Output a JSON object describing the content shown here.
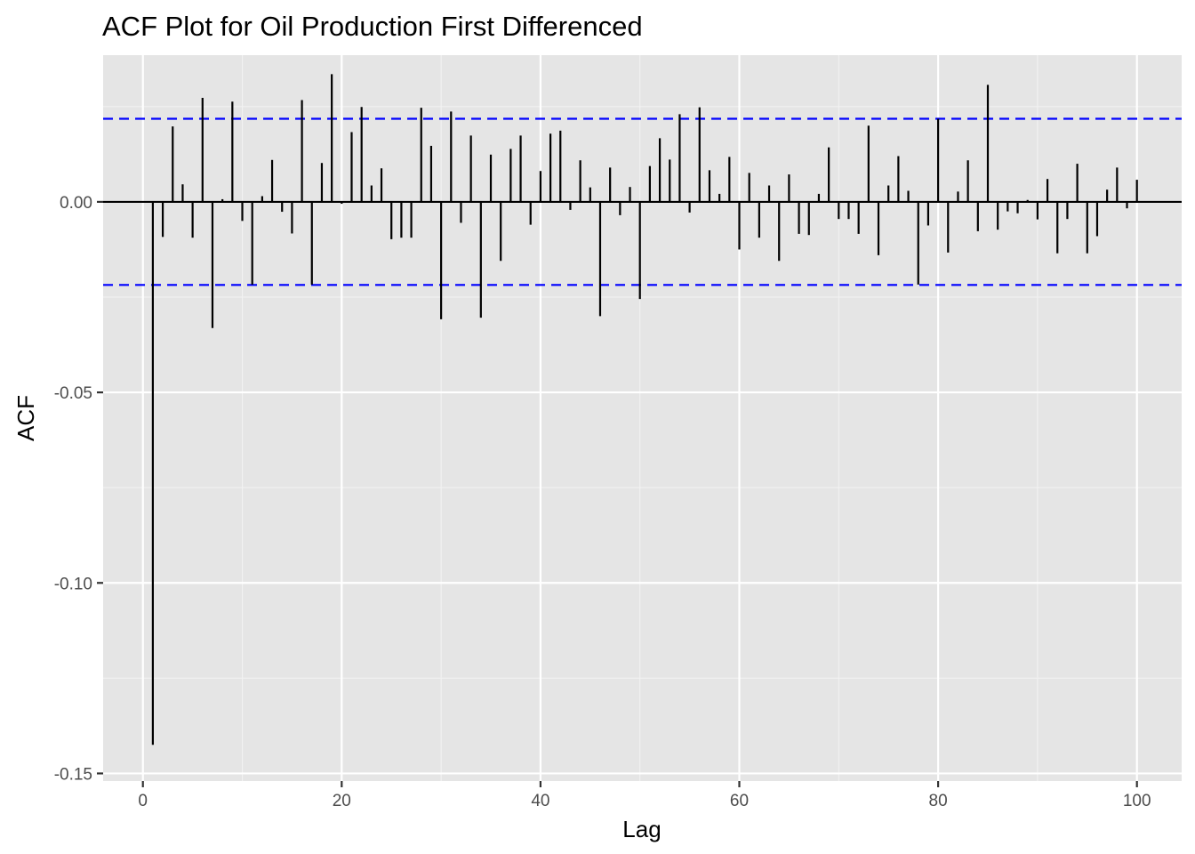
{
  "chart_data": {
    "type": "bar",
    "title": "ACF Plot for Oil Production First Differenced",
    "xlabel": "Lag",
    "ylabel": "ACF",
    "xlim": [
      -4,
      104.5
    ],
    "ylim": [
      -0.152,
      0.0385
    ],
    "xticks": [
      0,
      20,
      40,
      60,
      80,
      100
    ],
    "xtick_labels": [
      "0",
      "20",
      "40",
      "60",
      "80",
      "100"
    ],
    "yticks": [
      -0.15,
      -0.1,
      -0.05,
      0.0
    ],
    "ytick_labels": [
      "-0.15",
      "-0.10",
      "-0.05",
      "0.00"
    ],
    "grid": true,
    "confidence_bounds": [
      0.0218,
      -0.0218
    ],
    "confidence_color": "#0000ff",
    "bar_color": "#000000",
    "panel_color": "#e5e5e5",
    "x": [
      1,
      2,
      3,
      4,
      5,
      6,
      7,
      8,
      9,
      10,
      11,
      12,
      13,
      14,
      15,
      16,
      17,
      18,
      19,
      20,
      21,
      22,
      23,
      24,
      25,
      26,
      27,
      28,
      29,
      30,
      31,
      32,
      33,
      34,
      35,
      36,
      37,
      38,
      39,
      40,
      41,
      42,
      43,
      44,
      45,
      46,
      47,
      48,
      49,
      50,
      51,
      52,
      53,
      54,
      55,
      56,
      57,
      58,
      59,
      60,
      61,
      62,
      63,
      64,
      65,
      66,
      67,
      68,
      69,
      70,
      71,
      72,
      73,
      74,
      75,
      76,
      77,
      78,
      79,
      80,
      81,
      82,
      83,
      84,
      85,
      86,
      87,
      88,
      89,
      90,
      91,
      92,
      93,
      94,
      95,
      96,
      97,
      98,
      99,
      100
    ],
    "values": [
      -0.1425,
      -0.0092,
      0.0198,
      0.0046,
      -0.0094,
      0.0273,
      -0.0331,
      0.0007,
      0.0263,
      -0.005,
      -0.0217,
      0.0015,
      0.011,
      -0.0026,
      -0.0083,
      0.0267,
      -0.0217,
      0.0102,
      0.0335,
      -0.0005,
      0.0183,
      0.0249,
      0.0043,
      0.0088,
      -0.0098,
      -0.0094,
      -0.0094,
      0.0247,
      0.0147,
      -0.0308,
      0.0237,
      -0.0055,
      0.0174,
      -0.0304,
      0.0124,
      -0.0155,
      0.0139,
      0.0174,
      -0.006,
      0.0081,
      0.0179,
      0.0187,
      -0.0021,
      0.0109,
      0.0038,
      -0.03,
      0.009,
      -0.0035,
      0.0039,
      -0.0255,
      0.0094,
      0.0167,
      0.0111,
      0.023,
      -0.0028,
      0.0248,
      0.0083,
      0.0021,
      0.0118,
      -0.0125,
      0.0076,
      -0.0094,
      0.0043,
      -0.0155,
      0.0072,
      -0.0084,
      -0.0087,
      0.0021,
      0.0143,
      -0.0045,
      -0.0045,
      -0.0084,
      0.02,
      -0.014,
      0.0043,
      0.012,
      0.0029,
      -0.0217,
      -0.0062,
      0.0218,
      -0.0133,
      0.0027,
      0.0109,
      -0.0077,
      0.0307,
      -0.0073,
      -0.0025,
      -0.003,
      0.0005,
      -0.0046,
      0.006,
      -0.0135,
      -0.0045,
      0.01,
      -0.0135,
      -0.009,
      0.0032,
      0.009,
      -0.0017,
      0.0058
    ]
  }
}
